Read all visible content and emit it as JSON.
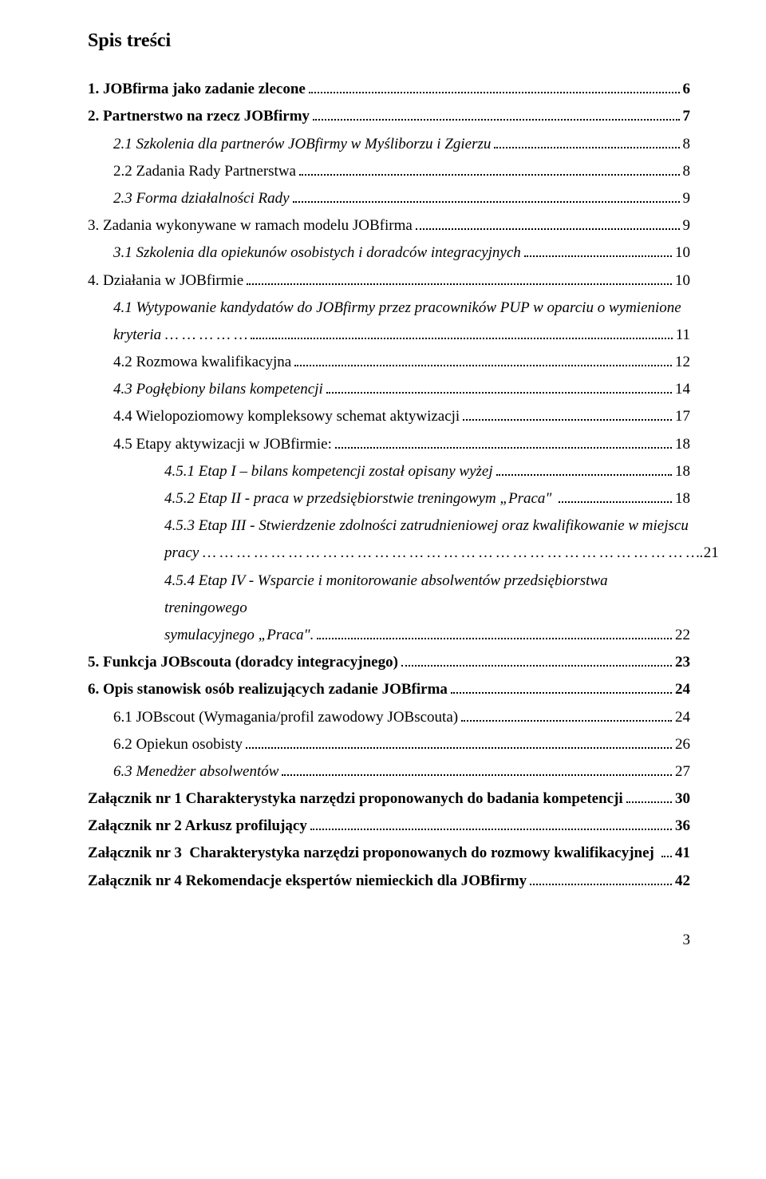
{
  "title": "Spis treści",
  "entries": [
    {
      "label": "1. JOBfirma jako zadanie zlecone",
      "page": "6",
      "level": 0,
      "bold": true,
      "italic": false
    },
    {
      "label": "2. Partnerstwo na rzecz JOBfirmy",
      "page": "7",
      "level": 0,
      "bold": true,
      "italic": false
    },
    {
      "label": "2.1 Szkolenia dla partnerów JOBfirmy w Myśliborzu i Zgierzu",
      "page": " 8",
      "level": 1,
      "bold": false,
      "italic": true
    },
    {
      "label": "2.2 Zadania Rady Partnerstwa",
      "page": " 8",
      "level": 1,
      "bold": false,
      "italic": false
    },
    {
      "label": "2.3 Forma działalności Rady",
      "page": " 9",
      "level": 1,
      "bold": false,
      "italic": true
    },
    {
      "label": "3. Zadania wykonywane w ramach modelu JOBfirma",
      "page": " 9",
      "level": 0,
      "bold": false,
      "italic": false
    },
    {
      "label": "3.1 Szkolenia dla opiekunów osobistych i doradców integracyjnych",
      "page": " 10",
      "level": 1,
      "bold": false,
      "italic": true
    },
    {
      "label": "4. Działania w JOBfirmie",
      "page": "10",
      "level": 0,
      "bold": false,
      "italic": false
    },
    {
      "label": "4.1 Wytypowanie kandydatów do JOBfirmy przez pracowników PUP  w oparciu o wymienione",
      "wrap_cont": "kryteria … … … … …",
      "page": " 11",
      "level": 1,
      "bold": false,
      "italic": true
    },
    {
      "label": "4.2 Rozmowa kwalifikacyjna",
      "page": " 12",
      "level": 1,
      "bold": false,
      "italic": false
    },
    {
      "label": "4.3 Pogłębiony bilans kompetencji",
      "page": " 14",
      "level": 1,
      "bold": false,
      "italic": true
    },
    {
      "label": "4.4 Wielopoziomowy kompleksowy schemat aktywizacji",
      "page": " 17",
      "level": 1,
      "bold": false,
      "italic": false
    },
    {
      "label": "4.5 Etapy aktywizacji w JOBfirmie:",
      "page": " 18",
      "level": 1,
      "bold": false,
      "italic": false
    },
    {
      "label": "4.5.1 Etap I – bilans kompetencji został opisany wyżej",
      "page": " 18",
      "level": 2,
      "bold": false,
      "italic": true
    },
    {
      "label": "4.5.2 Etap II - praca w przedsiębiorstwie treningowym „Praca\" ",
      "page": " 18",
      "level": 2,
      "bold": false,
      "italic": true
    },
    {
      "label": "4.5.3 Etap III - Stwierdzenie zdolności zatrudnieniowej oraz kwalifikowanie  w miejscu",
      "wrap_cont": "pracy … … … … … … … … … … … … … … … … … … … … … … … … … … … … ….",
      "page": "21",
      "level": 2,
      "bold": false,
      "italic": true,
      "mixed": true
    },
    {
      "label": "4.5.4 Etap IV - Wsparcie i monitorowanie absolwentów przedsiębiorstwa treningowego",
      "wrap_cont": "symulacyjnego „Praca\".",
      "page": " 22",
      "level": 2,
      "bold": false,
      "italic": true
    },
    {
      "label": "5. Funkcja JOBscouta (doradcy integracyjnego)",
      "page": "23",
      "level": 0,
      "bold": true,
      "italic": false
    },
    {
      "label": "6. Opis stanowisk osób realizujących zadanie JOBfirma",
      "page": "24",
      "level": 0,
      "bold": true,
      "italic": false
    },
    {
      "label": "6.1 JOBscout (Wymagania/profil zawodowy JOBscouta)",
      "page": " 24",
      "level": 1,
      "bold": false,
      "italic": false
    },
    {
      "label": "6.2 Opiekun osobisty",
      "page": " 26",
      "level": 1,
      "bold": false,
      "italic": false
    },
    {
      "label": "6.3 Menedżer absolwentów",
      "page": " 27",
      "level": 1,
      "bold": false,
      "italic": true
    },
    {
      "label": "Załącznik nr 1 Charakterystyka narzędzi proponowanych do badania kompetencji",
      "page": "30",
      "level": 0,
      "bold": true,
      "italic": false
    },
    {
      "label": "Załącznik nr 2 Arkusz profilujący",
      "page": "36",
      "level": 0,
      "bold": true,
      "italic": false
    },
    {
      "label": "Załącznik nr 3  Charakterystyka narzędzi proponowanych do rozmowy kwalifikacyjnej ",
      "page": "41",
      "level": 0,
      "bold": true,
      "italic": false
    },
    {
      "label": "Załącznik nr 4 Rekomendacje ekspertów niemieckich dla JOBfirmy",
      "page": "42",
      "level": 0,
      "bold": true,
      "italic": false
    }
  ],
  "page_number": "3"
}
